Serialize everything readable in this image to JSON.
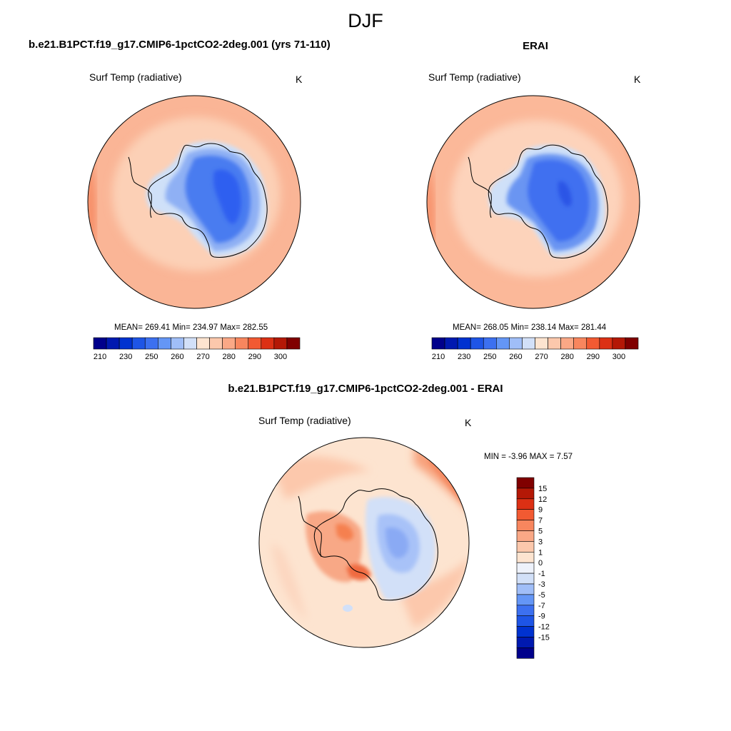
{
  "title": "DJF",
  "colors": {
    "land_outline": "#000000",
    "abs_scale": [
      "#00008b",
      "#0019b0",
      "#0032d0",
      "#1e55e6",
      "#3c70f0",
      "#6496f6",
      "#a0bef8",
      "#d2e0f8",
      "#fde4d0",
      "#fcc8ac",
      "#faa886",
      "#f8865e",
      "#f25a32",
      "#dc3014",
      "#b41806",
      "#800000"
    ],
    "diff_scale": [
      "#00008b",
      "#0019b0",
      "#0032d0",
      "#1e55e6",
      "#3c70f0",
      "#6496f6",
      "#a0bef8",
      "#d2e0f8",
      "#eef2fb",
      "#fde4d0",
      "#fcc8ac",
      "#faa886",
      "#f8865e",
      "#f25a32",
      "#dc3014",
      "#b41806",
      "#800000"
    ]
  },
  "panels": [
    {
      "title": "b.e21.B1PCT.f19_g17.CMIP6-1pctCO2-2deg.001 (yrs 71-110)",
      "variable": "Surf Temp (radiative)",
      "units": "K",
      "stats": "MEAN= 269.41  Min= 234.97  Max= 282.55",
      "colorbar_labels": [
        "210",
        "230",
        "250",
        "260",
        "270",
        "280",
        "290",
        "300"
      ]
    },
    {
      "title": "ERAI",
      "variable": "Surf Temp (radiative)",
      "units": "K",
      "stats": "MEAN= 268.05  Min= 238.14  Max= 281.44",
      "colorbar_labels": [
        "210",
        "230",
        "250",
        "260",
        "270",
        "280",
        "290",
        "300"
      ]
    },
    {
      "title": "b.e21.B1PCT.f19_g17.CMIP6-1pctCO2-2deg.001 - ERAI",
      "variable": "Surf Temp (radiative)",
      "units": "K",
      "stats": "MIN =  -3.96 MAX =   7.57",
      "colorbar_labels": [
        "15",
        "12",
        "9",
        "7",
        "5",
        "3",
        "1",
        "0",
        "-1",
        "-3",
        "-5",
        "-7",
        "-9",
        "-12",
        "-15"
      ]
    }
  ]
}
